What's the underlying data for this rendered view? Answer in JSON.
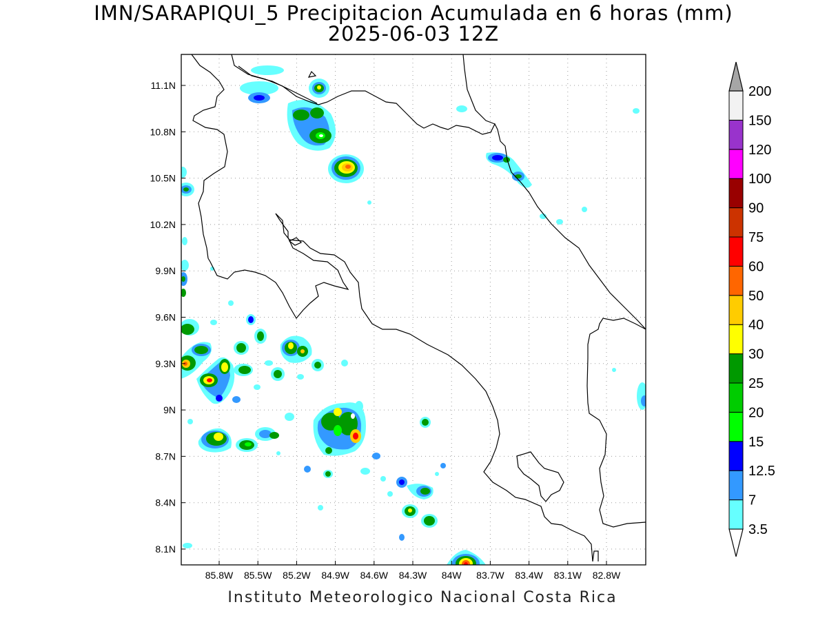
{
  "title_line1": "IMN/SARAPIQUI_5 Precipitacion Acumulada en 6 horas (mm)",
  "title_line2": "2025-06-03 12Z",
  "footer": "Instituto Meteorologico Nacional Costa Rica",
  "map": {
    "lon_range": [
      -86.0,
      -83.0
    ],
    "lat_range": [
      8.0,
      11.3
    ],
    "x_ticks": [
      "85.8W",
      "85.5W",
      "85.2W",
      "84.9W",
      "84.6W",
      "84.3W",
      "84W",
      "83.7W",
      "83.4W",
      "83.1W",
      "82.8W"
    ],
    "y_ticks": [
      "11.1N",
      "10.8N",
      "10.5N",
      "10.2N",
      "9.9N",
      "9.6N",
      "9.3N",
      "9N",
      "8.7N",
      "8.4N",
      "8.1N"
    ],
    "grid": "dotted"
  },
  "colorbar": {
    "labels": [
      "3.5",
      "7",
      "12.5",
      "15",
      "20",
      "25",
      "30",
      "40",
      "50",
      "60",
      "75",
      "90",
      "100",
      "120",
      "150",
      "200"
    ],
    "colors": [
      "#66ffff",
      "#3399ff",
      "#0000ff",
      "#00ff00",
      "#00cc00",
      "#009900",
      "#ffff00",
      "#ffcc00",
      "#ff6600",
      "#ff0000",
      "#cc3300",
      "#990000",
      "#ff00ff",
      "#9933cc",
      "#f2f2f2",
      "#a6a6a6"
    ]
  }
}
